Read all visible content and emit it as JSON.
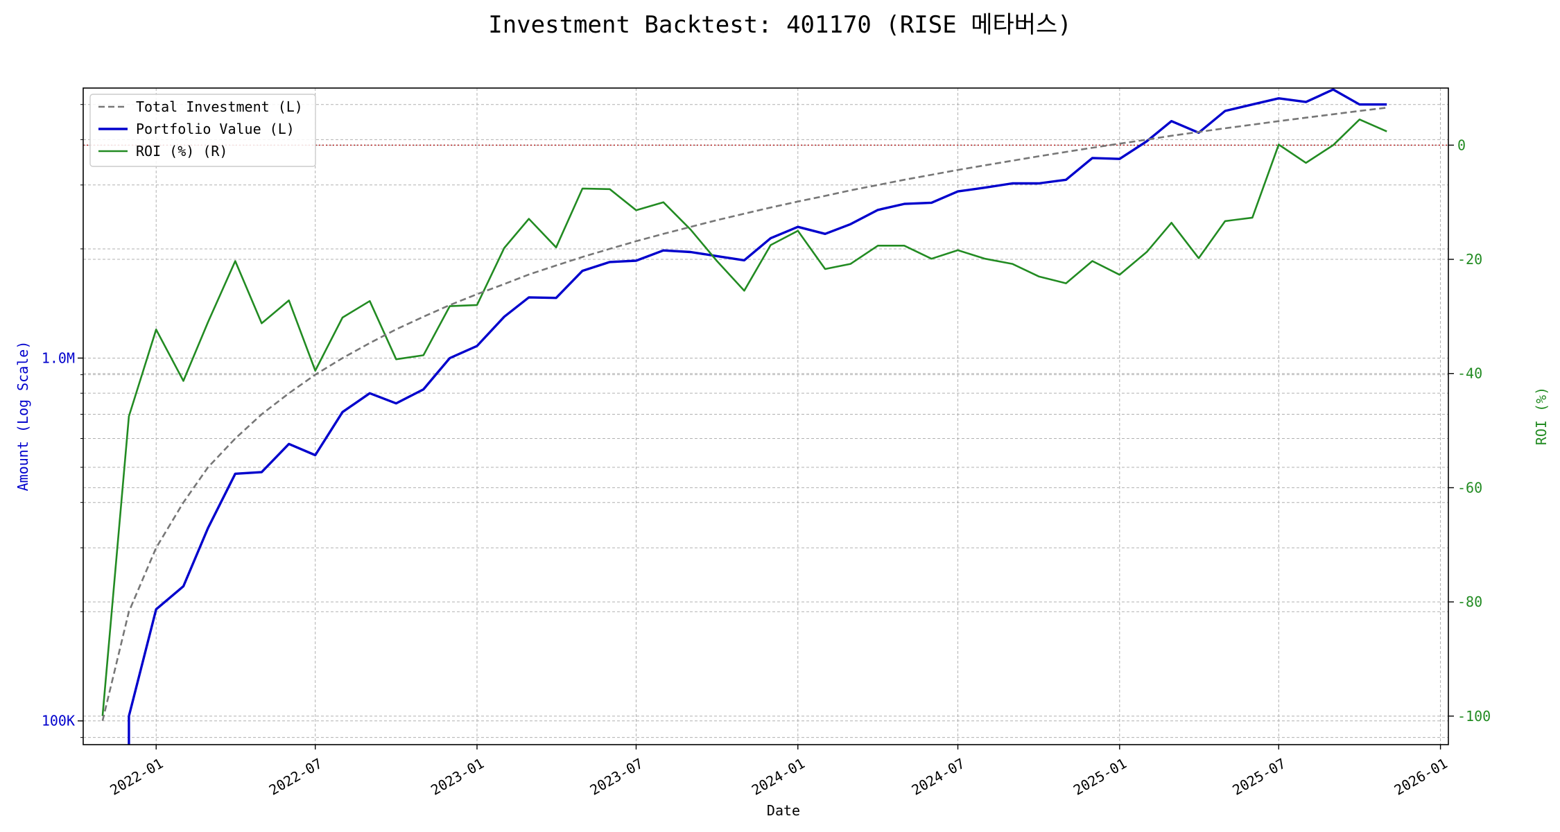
{
  "chart_data": {
    "type": "line",
    "title": "Investment Backtest: 401170 (RISE 메타버스)",
    "xlabel": "Date",
    "ylabel_left": "Amount (Log Scale)",
    "ylabel_right": "ROI (%)",
    "left_scale": "log",
    "left_ylim": [
      86000,
      5550000
    ],
    "right_ylim": [
      -105,
      10
    ],
    "xlim": [
      "2021-10-10",
      "2026-01-10"
    ],
    "x_ticks": [
      "2022-01",
      "2022-07",
      "2023-01",
      "2023-07",
      "2024-01",
      "2024-07",
      "2025-01",
      "2025-07",
      "2026-01"
    ],
    "left_ticks": [
      {
        "value": 100000,
        "label": "100K"
      },
      {
        "value": 1000000,
        "label": "1.0M"
      }
    ],
    "right_ticks": [
      0,
      -20,
      -40,
      -60,
      -80,
      -100
    ],
    "grid": true,
    "legend_position": "top-left",
    "zero_line": {
      "axis": "right",
      "value": 0,
      "color": "#b22222"
    },
    "colors": {
      "left_axis": "#0000cc",
      "right_axis": "#228b22"
    },
    "x": [
      "2021-12-01",
      "2022-01-01",
      "2022-02-01",
      "2022-03-01",
      "2022-04-01",
      "2022-05-01",
      "2022-06-01",
      "2022-07-01",
      "2022-08-01",
      "2022-09-01",
      "2022-10-01",
      "2022-11-01",
      "2022-12-01",
      "2023-01-01",
      "2023-02-01",
      "2023-03-01",
      "2023-04-01",
      "2023-05-01",
      "2023-06-01",
      "2023-07-01",
      "2023-08-01",
      "2023-09-01",
      "2023-10-01",
      "2023-11-01",
      "2023-12-01",
      "2024-01-01",
      "2024-02-01",
      "2024-03-01",
      "2024-04-01",
      "2024-05-01",
      "2024-06-01",
      "2024-07-01",
      "2024-08-01",
      "2024-09-01",
      "2024-10-01",
      "2024-11-01",
      "2024-12-01",
      "2025-01-01",
      "2025-02-01",
      "2025-03-01",
      "2025-04-01",
      "2025-05-01",
      "2025-06-01",
      "2025-07-01",
      "2025-08-01",
      "2025-09-01",
      "2025-10-01",
      "2025-11-01"
    ],
    "series": [
      {
        "name": "Total Investment (L)",
        "axis": "left",
        "color": "#777777",
        "style": "dashed",
        "x_start": [
          "2021-11-01"
        ],
        "values_start": [
          100000
        ],
        "values": [
          200000,
          300000,
          400000,
          500000,
          600000,
          700000,
          800000,
          900000,
          1000000,
          1100000,
          1200000,
          1300000,
          1400000,
          1500000,
          1600000,
          1700000,
          1800000,
          1900000,
          2000000,
          2100000,
          2200000,
          2300000,
          2400000,
          2500000,
          2600000,
          2700000,
          2800000,
          2900000,
          3000000,
          3100000,
          3200000,
          3300000,
          3400000,
          3500000,
          3600000,
          3700000,
          3800000,
          3900000,
          4000000,
          4100000,
          4200000,
          4300000,
          4400000,
          4500000,
          4600000,
          4700000,
          4800000,
          4900000
        ]
      },
      {
        "name": "Portfolio Value (L)",
        "axis": "left",
        "color": "#0000cc",
        "style": "solid",
        "values": [
          103000,
          203000,
          235000,
          340000,
          480000,
          485000,
          580000,
          540000,
          710000,
          800000,
          750000,
          820000,
          1000000,
          1080000,
          1300000,
          1470000,
          1465000,
          1740000,
          1840000,
          1855000,
          1980000,
          1960000,
          1910000,
          1860000,
          2140000,
          2300000,
          2200000,
          2340000,
          2560000,
          2660000,
          2680000,
          2880000,
          2950000,
          3030000,
          3030000,
          3100000,
          3560000,
          3540000,
          3960000,
          4500000,
          4180000,
          4800000,
          5000000,
          5200000,
          5080000,
          5500000,
          5000000,
          5000000
        ]
      },
      {
        "name": "ROI (%) (R)",
        "axis": "right",
        "color": "#228b22",
        "style": "solid",
        "x_start": [
          "2021-11-01"
        ],
        "values_start": [
          -100
        ],
        "values": [
          -47.5,
          -32.3,
          -41.3,
          -31,
          -20.3,
          -31.2,
          -27.2,
          -39.5,
          -30.2,
          -27.3,
          -37.5,
          -36.8,
          -28.2,
          -28,
          -18,
          -12.9,
          -17.9,
          -7.6,
          -7.7,
          -11.4,
          -10,
          -14.8,
          -20.3,
          -25.5,
          -17.5,
          -15,
          -21.7,
          -20.8,
          -17.6,
          -17.6,
          -19.9,
          -18.4,
          -19.9,
          -20.8,
          -23,
          -24.2,
          -20.3,
          -22.7,
          -18.7,
          -13.6,
          -19.8,
          -13.3,
          -12.7,
          0.1,
          -3.1,
          0,
          4.5,
          2.4
        ]
      }
    ]
  }
}
